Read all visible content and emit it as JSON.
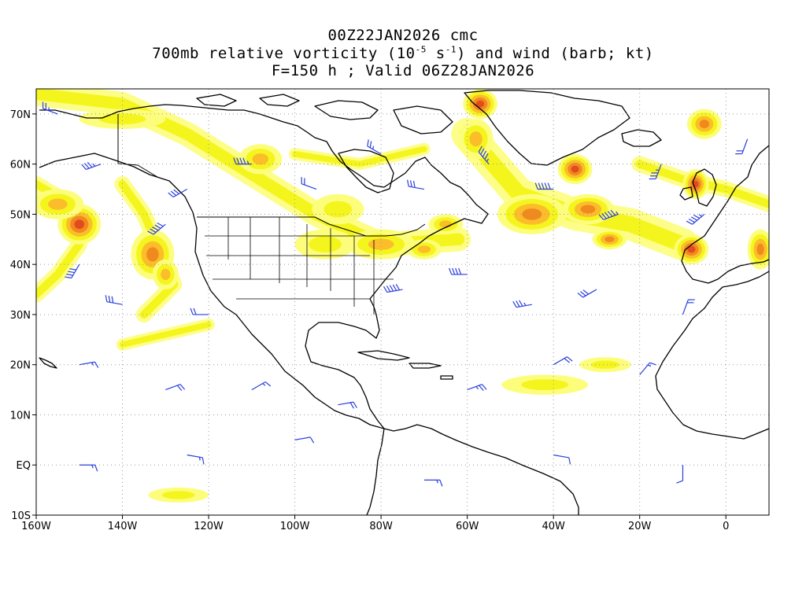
{
  "title": {
    "line1": "00Z22JAN2026 cmc",
    "line2_prefix": "700mb relative vorticity (10",
    "line2_exp1": "-5",
    "line2_mid": " s",
    "line2_exp2": "-1",
    "line2_suffix": ") and wind (barb; kt)",
    "line3": "F=150 h ; Valid 06Z28JAN2026"
  },
  "map": {
    "projection": "cylindrical-equidistant",
    "lon_range": [
      -160,
      10
    ],
    "lat_range": [
      -10,
      75
    ],
    "grid": "dotted",
    "x_ticks": [
      {
        "lon": -160,
        "label": "160W"
      },
      {
        "lon": -140,
        "label": "140W"
      },
      {
        "lon": -120,
        "label": "120W"
      },
      {
        "lon": -100,
        "label": "100W"
      },
      {
        "lon": -80,
        "label": "80W"
      },
      {
        "lon": -60,
        "label": "60W"
      },
      {
        "lon": -40,
        "label": "40W"
      },
      {
        "lon": -20,
        "label": "20W"
      },
      {
        "lon": 0,
        "label": "0"
      }
    ],
    "y_ticks": [
      {
        "lat": 70,
        "label": "70N"
      },
      {
        "lat": 60,
        "label": "60N"
      },
      {
        "lat": 50,
        "label": "50N"
      },
      {
        "lat": 40,
        "label": "40N"
      },
      {
        "lat": 30,
        "label": "30N"
      },
      {
        "lat": 20,
        "label": "20N"
      },
      {
        "lat": 10,
        "label": "10N"
      },
      {
        "lat": 0,
        "label": "EQ"
      },
      {
        "lat": -10,
        "label": "10S"
      }
    ],
    "colors": {
      "yellow": "#f5f51e",
      "light_yellow": "#fdfd7c",
      "orange": "#fbbd2a",
      "dark_orange": "#f08a1e",
      "red": "#e34a20",
      "barb": "#2a3fdc",
      "coast": "#000000"
    },
    "vorticity_areas": [
      {
        "lon": -150,
        "lat": 48,
        "rx": 5,
        "ry": 4,
        "level": 4
      },
      {
        "lon": -155,
        "lat": 52,
        "rx": 6,
        "ry": 3,
        "level": 2
      },
      {
        "lon": -133,
        "lat": 42,
        "rx": 5,
        "ry": 5,
        "level": 3
      },
      {
        "lon": -130,
        "lat": 38,
        "rx": 3,
        "ry": 3,
        "level": 2
      },
      {
        "lon": -108,
        "lat": 61,
        "rx": 5,
        "ry": 3,
        "level": 2
      },
      {
        "lon": -90,
        "lat": 51,
        "rx": 6,
        "ry": 3,
        "level": 1
      },
      {
        "lon": -93,
        "lat": 44,
        "rx": 7,
        "ry": 3,
        "level": 1
      },
      {
        "lon": -80,
        "lat": 44,
        "rx": 8,
        "ry": 3,
        "level": 2
      },
      {
        "lon": -70,
        "lat": 43,
        "rx": 4,
        "ry": 2,
        "level": 2
      },
      {
        "lon": -65,
        "lat": 48,
        "rx": 4,
        "ry": 2,
        "level": 2
      },
      {
        "lon": -57,
        "lat": 72,
        "rx": 4,
        "ry": 3,
        "level": 4
      },
      {
        "lon": -58,
        "lat": 65,
        "rx": 4,
        "ry": 4,
        "level": 2
      },
      {
        "lon": -35,
        "lat": 59,
        "rx": 4,
        "ry": 3,
        "level": 4
      },
      {
        "lon": -45,
        "lat": 50,
        "rx": 8,
        "ry": 4,
        "level": 3
      },
      {
        "lon": -32,
        "lat": 51,
        "rx": 6,
        "ry": 3,
        "level": 3
      },
      {
        "lon": -27,
        "lat": 45,
        "rx": 4,
        "ry": 2,
        "level": 3
      },
      {
        "lon": -8,
        "lat": 43,
        "rx": 4,
        "ry": 3,
        "level": 4
      },
      {
        "lon": -7,
        "lat": 56,
        "rx": 3,
        "ry": 3,
        "level": 4
      },
      {
        "lon": -5,
        "lat": 68,
        "rx": 4,
        "ry": 3,
        "level": 3
      },
      {
        "lon": 8,
        "lat": 43,
        "rx": 3,
        "ry": 4,
        "level": 3
      },
      {
        "lon": -42,
        "lat": 16,
        "rx": 10,
        "ry": 2,
        "level": 1
      },
      {
        "lon": -28,
        "lat": 20,
        "rx": 6,
        "ry": 1.5,
        "level": 1
      },
      {
        "lon": -127,
        "lat": -6,
        "rx": 7,
        "ry": 1.5,
        "level": 1
      },
      {
        "lon": -140,
        "lat": 69,
        "rx": 10,
        "ry": 2,
        "level": 1
      }
    ],
    "vorticity_bands": [
      {
        "points": [
          [
            -160,
            74
          ],
          [
            -140,
            72
          ],
          [
            -125,
            66
          ],
          [
            -110,
            58
          ],
          [
            -95,
            50
          ],
          [
            -80,
            44
          ],
          [
            -62,
            45
          ]
        ],
        "width": 3,
        "level": 1
      },
      {
        "points": [
          [
            -60,
            66
          ],
          [
            -48,
            54
          ],
          [
            -35,
            50
          ],
          [
            -22,
            48
          ],
          [
            -10,
            44
          ]
        ],
        "width": 4,
        "level": 1
      },
      {
        "points": [
          [
            -160,
            56
          ],
          [
            -152,
            52
          ],
          [
            -150,
            44
          ],
          [
            -155,
            38
          ],
          [
            -160,
            34
          ]
        ],
        "width": 2,
        "level": 1
      },
      {
        "points": [
          [
            -140,
            56
          ],
          [
            -135,
            50
          ],
          [
            -132,
            44
          ],
          [
            -128,
            36
          ],
          [
            -135,
            30
          ]
        ],
        "width": 2,
        "level": 1
      },
      {
        "points": [
          [
            -140,
            24
          ],
          [
            -130,
            26
          ],
          [
            -120,
            28
          ]
        ],
        "width": 1.5,
        "level": 1
      },
      {
        "points": [
          [
            -100,
            62
          ],
          [
            -85,
            60
          ],
          [
            -70,
            63
          ]
        ],
        "width": 1.5,
        "level": 1
      },
      {
        "points": [
          [
            -20,
            60
          ],
          [
            -10,
            57
          ],
          [
            0,
            55
          ],
          [
            10,
            52
          ]
        ],
        "width": 2,
        "level": 1
      }
    ],
    "wind_barbs": [
      {
        "lon": -155,
        "lat": 70,
        "dir": 290,
        "kt": 25
      },
      {
        "lon": -145,
        "lat": 60,
        "dir": 250,
        "kt": 35
      },
      {
        "lon": -130,
        "lat": 48,
        "dir": 230,
        "kt": 50
      },
      {
        "lon": -150,
        "lat": 40,
        "dir": 210,
        "kt": 40
      },
      {
        "lon": -125,
        "lat": 55,
        "dir": 240,
        "kt": 30
      },
      {
        "lon": -110,
        "lat": 60,
        "dir": 270,
        "kt": 45
      },
      {
        "lon": -95,
        "lat": 55,
        "dir": 290,
        "kt": 20
      },
      {
        "lon": -80,
        "lat": 62,
        "dir": 300,
        "kt": 25
      },
      {
        "lon": -70,
        "lat": 55,
        "dir": 280,
        "kt": 30
      },
      {
        "lon": -55,
        "lat": 60,
        "dir": 320,
        "kt": 45
      },
      {
        "lon": -40,
        "lat": 55,
        "dir": 270,
        "kt": 50
      },
      {
        "lon": -25,
        "lat": 50,
        "dir": 250,
        "kt": 55
      },
      {
        "lon": -15,
        "lat": 60,
        "dir": 200,
        "kt": 35
      },
      {
        "lon": -5,
        "lat": 50,
        "dir": 230,
        "kt": 45
      },
      {
        "lon": 5,
        "lat": 65,
        "dir": 200,
        "kt": 20
      },
      {
        "lon": -140,
        "lat": 32,
        "dir": 280,
        "kt": 30
      },
      {
        "lon": -120,
        "lat": 30,
        "dir": 270,
        "kt": 20
      },
      {
        "lon": -75,
        "lat": 35,
        "dir": 260,
        "kt": 50
      },
      {
        "lon": -60,
        "lat": 38,
        "dir": 270,
        "kt": 40
      },
      {
        "lon": -45,
        "lat": 32,
        "dir": 260,
        "kt": 35
      },
      {
        "lon": -30,
        "lat": 35,
        "dir": 240,
        "kt": 30
      },
      {
        "lon": -10,
        "lat": 30,
        "dir": 20,
        "kt": 20
      },
      {
        "lon": -150,
        "lat": 20,
        "dir": 80,
        "kt": 15
      },
      {
        "lon": -130,
        "lat": 15,
        "dir": 70,
        "kt": 20
      },
      {
        "lon": -110,
        "lat": 15,
        "dir": 60,
        "kt": 15
      },
      {
        "lon": -90,
        "lat": 12,
        "dir": 80,
        "kt": 20
      },
      {
        "lon": -60,
        "lat": 15,
        "dir": 70,
        "kt": 25
      },
      {
        "lon": -40,
        "lat": 20,
        "dir": 60,
        "kt": 20
      },
      {
        "lon": -20,
        "lat": 18,
        "dir": 40,
        "kt": 15
      },
      {
        "lon": -150,
        "lat": 0,
        "dir": 90,
        "kt": 15
      },
      {
        "lon": -125,
        "lat": 2,
        "dir": 100,
        "kt": 15
      },
      {
        "lon": -100,
        "lat": 5,
        "dir": 80,
        "kt": 10
      },
      {
        "lon": -70,
        "lat": -3,
        "dir": 90,
        "kt": 15
      },
      {
        "lon": -40,
        "lat": 2,
        "dir": 100,
        "kt": 10
      },
      {
        "lon": -10,
        "lat": 0,
        "dir": 180,
        "kt": 10
      }
    ]
  }
}
